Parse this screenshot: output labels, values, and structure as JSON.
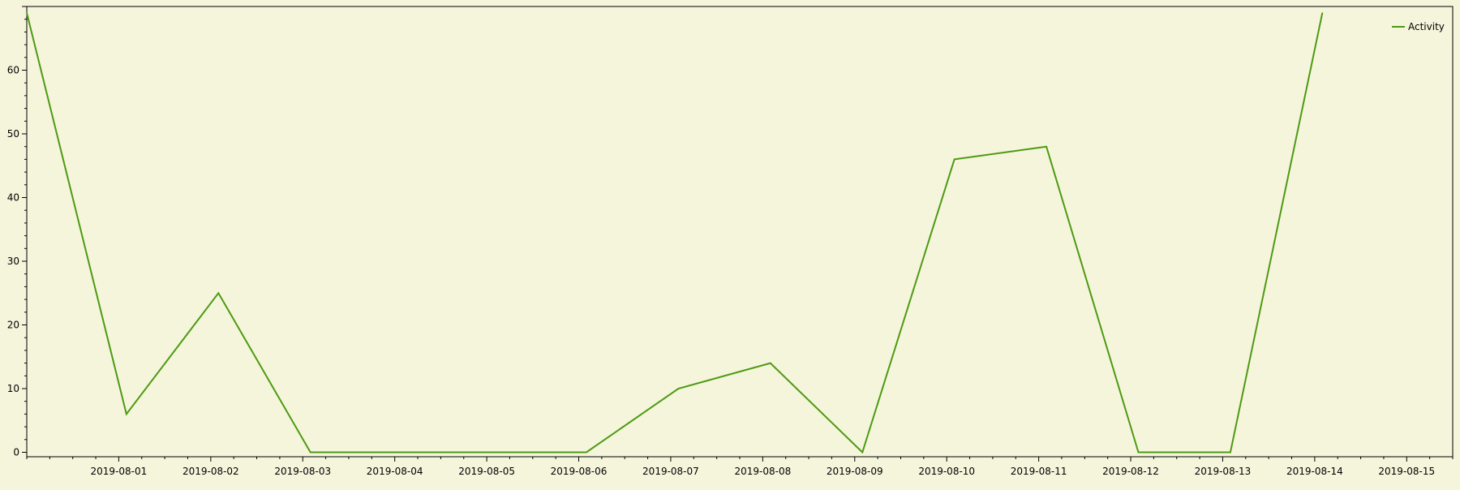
{
  "colors": {
    "background": "#f5f5dc",
    "series": "#4d9a12",
    "axis": "#000000"
  },
  "chart_data": {
    "type": "line",
    "title": "",
    "xlabel": "",
    "ylabel": "",
    "grid": false,
    "legend_position": "top-right",
    "xlim": [
      "2019-07-31T00:00",
      "2019-08-15T12:00"
    ],
    "ylim": [
      -0.7,
      70
    ],
    "x_tick_labels": [
      "2019-08-01",
      "2019-08-02",
      "2019-08-03",
      "2019-08-04",
      "2019-08-05",
      "2019-08-06",
      "2019-08-07",
      "2019-08-08",
      "2019-08-09",
      "2019-08-10",
      "2019-08-11",
      "2019-08-12",
      "2019-08-13",
      "2019-08-14",
      "2019-08-15"
    ],
    "y_ticks": [
      0,
      10,
      20,
      30,
      40,
      50,
      60
    ],
    "y_tick_labels": [
      "0",
      "10",
      "20",
      "30",
      "40",
      "50",
      "60"
    ],
    "series": [
      {
        "name": "Activity",
        "color": "#4d9a12",
        "x": [
          "2019-07-31T00:00",
          "2019-08-01T02:00",
          "2019-08-02T02:00",
          "2019-08-03T02:00",
          "2019-08-04T02:00",
          "2019-08-05T02:00",
          "2019-08-06T02:00",
          "2019-08-07T02:00",
          "2019-08-08T02:00",
          "2019-08-09T02:00",
          "2019-08-10T02:00",
          "2019-08-11T02:00",
          "2019-08-12T02:00",
          "2019-08-13T02:00",
          "2019-08-14T02:00"
        ],
        "values": [
          69,
          6,
          25,
          0,
          0,
          0,
          0,
          10,
          14,
          0,
          46,
          48,
          0,
          0,
          69
        ]
      }
    ]
  }
}
